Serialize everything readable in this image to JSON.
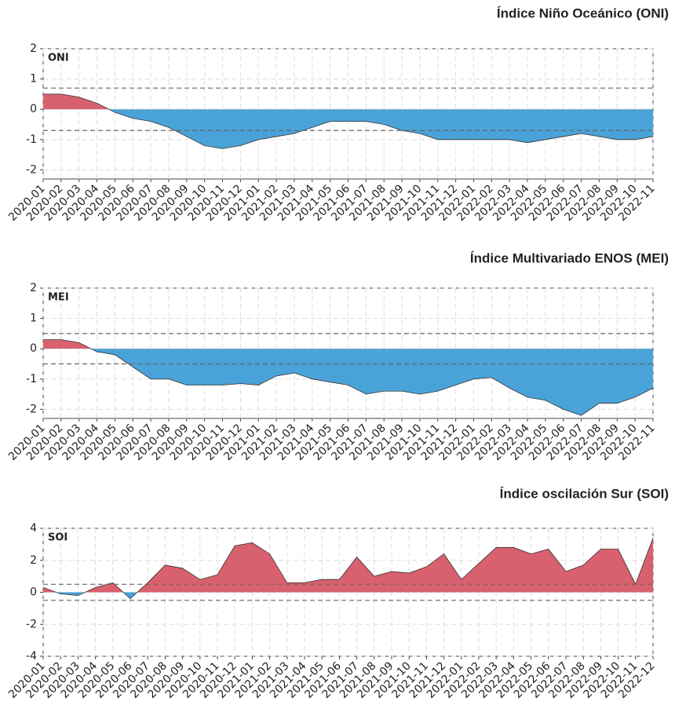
{
  "chart_data": [
    {
      "type": "area",
      "title": "Índice Niño Oceánico (ONI)",
      "label": "ONI",
      "categories": [
        "2020-01",
        "2020-02",
        "2020-03",
        "2020-04",
        "2020-05",
        "2020-06",
        "2020-07",
        "2020-08",
        "2020-09",
        "2020-10",
        "2020-11",
        "2020-12",
        "2021-01",
        "2021-02",
        "2021-03",
        "2021-04",
        "2021-05",
        "2021-06",
        "2021-07",
        "2021-08",
        "2021-09",
        "2021-10",
        "2021-11",
        "2021-12",
        "2022-01",
        "2022-02",
        "2022-03",
        "2022-04",
        "2022-05",
        "2022-06",
        "2022-07",
        "2022-08",
        "2022-09",
        "2022-10",
        "2022-11"
      ],
      "values": [
        0.5,
        0.5,
        0.4,
        0.2,
        -0.1,
        -0.3,
        -0.4,
        -0.6,
        -0.9,
        -1.2,
        -1.3,
        -1.2,
        -1.0,
        -0.9,
        -0.8,
        -0.6,
        -0.4,
        -0.4,
        -0.4,
        -0.5,
        -0.7,
        -0.8,
        -1.0,
        -1.0,
        -1.0,
        -1.0,
        -1.0,
        -1.1,
        -1.0,
        -0.9,
        -0.8,
        -0.9,
        -1.0,
        -1.0,
        -0.9
      ],
      "ylim": [
        -2.3,
        2
      ],
      "yticks": [
        -2,
        -1,
        0,
        1,
        2
      ],
      "thresholds": [
        0.7,
        -0.7
      ],
      "positive_color": "#d9606e",
      "negative_color": "#4aa3d8",
      "grid": true
    },
    {
      "type": "area",
      "title": "Índice Multivariado ENOS (MEI)",
      "label": "MEI",
      "categories": [
        "2020-01",
        "2020-02",
        "2020-03",
        "2020-04",
        "2020-05",
        "2020-06",
        "2020-07",
        "2020-08",
        "2020-09",
        "2020-10",
        "2020-11",
        "2020-12",
        "2021-01",
        "2021-02",
        "2021-03",
        "2021-04",
        "2021-05",
        "2021-06",
        "2021-07",
        "2021-08",
        "2021-09",
        "2021-10",
        "2021-11",
        "2021-12",
        "2022-01",
        "2022-02",
        "2022-03",
        "2022-04",
        "2022-05",
        "2022-06",
        "2022-07",
        "2022-08",
        "2022-09",
        "2022-10",
        "2022-11"
      ],
      "values": [
        0.3,
        0.3,
        0.2,
        -0.1,
        -0.2,
        -0.6,
        -1.0,
        -1.0,
        -1.2,
        -1.2,
        -1.2,
        -1.15,
        -1.2,
        -0.9,
        -0.8,
        -1.0,
        -1.1,
        -1.2,
        -1.5,
        -1.4,
        -1.4,
        -1.5,
        -1.4,
        -1.2,
        -1.0,
        -0.95,
        -1.3,
        -1.6,
        -1.7,
        -2.0,
        -2.2,
        -1.8,
        -1.8,
        -1.6,
        -1.3
      ],
      "ylim": [
        -2.3,
        2
      ],
      "yticks": [
        -2,
        -1,
        0,
        1,
        2
      ],
      "thresholds": [
        0.5,
        -0.5
      ],
      "positive_color": "#d9606e",
      "negative_color": "#4aa3d8",
      "grid": true
    },
    {
      "type": "area",
      "title": "Índice oscilación Sur (SOI)",
      "label": "SOI",
      "categories": [
        "2020-01",
        "2020-02",
        "2020-03",
        "2020-04",
        "2020-05",
        "2020-06",
        "2020-07",
        "2020-08",
        "2020-09",
        "2020-10",
        "2020-11",
        "2020-12",
        "2021-01",
        "2021-02",
        "2021-03",
        "2021-04",
        "2021-05",
        "2021-06",
        "2021-07",
        "2021-08",
        "2021-09",
        "2021-10",
        "2021-11",
        "2021-12",
        "2022-01",
        "2022-02",
        "2022-03",
        "2022-04",
        "2022-05",
        "2022-06",
        "2022-07",
        "2022-08",
        "2022-09",
        "2022-10",
        "2022-11",
        "2022-12"
      ],
      "values": [
        0.3,
        -0.1,
        -0.2,
        0.3,
        0.6,
        -0.4,
        0.6,
        1.7,
        1.5,
        0.8,
        1.1,
        2.9,
        3.1,
        2.4,
        0.6,
        0.6,
        0.8,
        0.8,
        2.2,
        1.0,
        1.3,
        1.2,
        1.6,
        2.4,
        0.8,
        1.8,
        2.8,
        2.8,
        2.4,
        2.7,
        1.3,
        1.7,
        2.7,
        2.7,
        0.5,
        3.4
      ],
      "ylim": [
        -4,
        4
      ],
      "yticks": [
        -4,
        -2,
        0,
        2,
        4
      ],
      "thresholds": [
        0.5,
        -0.5
      ],
      "positive_color": "#d9606e",
      "negative_color": "#4aa3d8",
      "grid": true
    }
  ]
}
